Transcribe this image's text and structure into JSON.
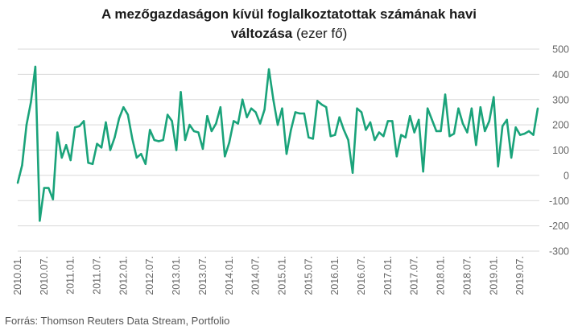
{
  "title": {
    "line1": "A mezőgazdaságon kívül foglalkoztatottak számának havi",
    "line2_bold": "változása",
    "line2_rest": " (ezer fő)"
  },
  "source": "Forrás: Thomson Reuters Data Stream, Portfolio",
  "colors": {
    "line": "#1aa37a",
    "grid": "#d9d9d9",
    "tick": "#666666"
  },
  "chart_data": {
    "type": "line",
    "title": "A mezőgazdaságon kívül foglalkoztatottak számának havi változása (ezer fő)",
    "xlabel": "",
    "ylabel": "",
    "ylim": [
      -300,
      500
    ],
    "yticks": [
      500,
      400,
      300,
      200,
      100,
      0,
      -100,
      -200,
      -300
    ],
    "y_axis_side": "right",
    "grid": "horizontal",
    "legend": "none",
    "x_tick_labels": [
      "2010.01.",
      "2010.07.",
      "2011.01.",
      "2011.07.",
      "2012.01.",
      "2012.07.",
      "2013.01.",
      "2013.07.",
      "2014.01.",
      "2014.07.",
      "2015.01.",
      "2015.07.",
      "2016.01.",
      "2016.07.",
      "2017.01.",
      "2017.07.",
      "2018.01.",
      "2018.07.",
      "2019.01.",
      "2019.07."
    ],
    "x_start": "2010-01",
    "x_end": "2019-10",
    "series": [
      {
        "values": [
          -30,
          40,
          200,
          290,
          430,
          -180,
          -50,
          -50,
          -95,
          170,
          70,
          120,
          60,
          190,
          195,
          215,
          50,
          45,
          125,
          110,
          210,
          100,
          150,
          225,
          270,
          240,
          145,
          70,
          85,
          45,
          180,
          140,
          135,
          140,
          240,
          215,
          100,
          330,
          140,
          200,
          175,
          170,
          105,
          235,
          175,
          205,
          270,
          75,
          130,
          215,
          205,
          300,
          230,
          265,
          250,
          205,
          260,
          420,
          300,
          200,
          265,
          85,
          180,
          250,
          245,
          245,
          150,
          145,
          295,
          280,
          270,
          155,
          160,
          230,
          180,
          140,
          10,
          265,
          250,
          180,
          210,
          140,
          170,
          155,
          215,
          215,
          75,
          160,
          150,
          235,
          170,
          220,
          15,
          265,
          220,
          175,
          175,
          320,
          155,
          165,
          265,
          205,
          170,
          265,
          120,
          270,
          175,
          215,
          310,
          35,
          195,
          220,
          70,
          190,
          160,
          165,
          175,
          160,
          265
        ]
      }
    ]
  }
}
